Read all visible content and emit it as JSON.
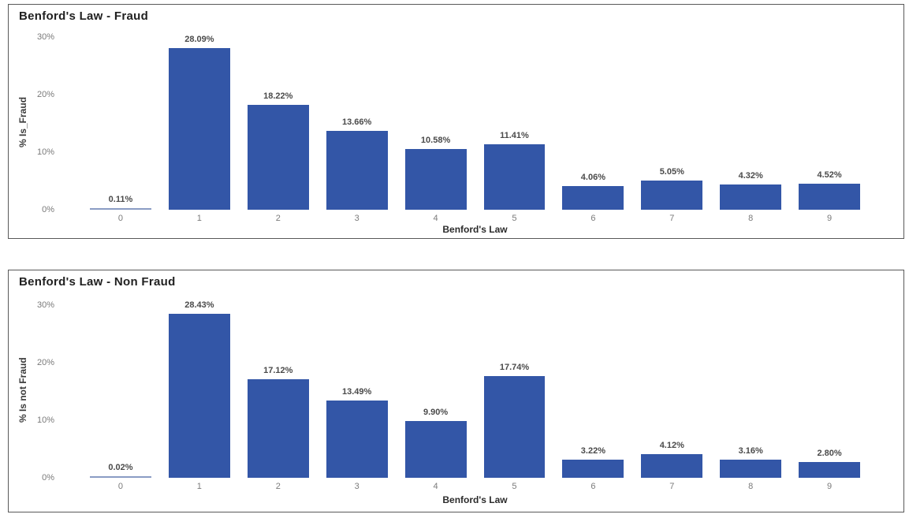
{
  "colors": {
    "bar_fill": "#3356A7",
    "zero_bar_fill": "#8A9CC4",
    "card_border": "#595959",
    "title_text": "#212121",
    "data_label_text": "#4a4a4a",
    "tick_label_text": "#7a7a7a",
    "axis_title_text": "#3a3a3a",
    "background": "#ffffff"
  },
  "chart_data": [
    {
      "type": "bar",
      "title": "Benford's Law - Fraud",
      "xlabel": "Benford's Law",
      "ylabel": "% Is_Fraud",
      "categories": [
        "0",
        "1",
        "2",
        "3",
        "4",
        "5",
        "6",
        "7",
        "8",
        "9"
      ],
      "values": [
        0.11,
        28.09,
        18.22,
        13.66,
        10.58,
        11.41,
        4.06,
        5.05,
        4.32,
        4.52
      ],
      "value_labels": [
        "0.11%",
        "28.09%",
        "18.22%",
        "13.66%",
        "10.58%",
        "11.41%",
        "4.06%",
        "5.05%",
        "4.32%",
        "4.52%"
      ],
      "y_ticks": [
        {
          "value": 0,
          "label": "0%"
        },
        {
          "value": 10,
          "label": "10%"
        },
        {
          "value": 20,
          "label": "20%"
        },
        {
          "value": 30,
          "label": "30%"
        }
      ],
      "ylim": [
        0,
        30
      ],
      "grid": false,
      "legend": "none"
    },
    {
      "type": "bar",
      "title": "Benford's Law - Non Fraud",
      "xlabel": "Benford's Law",
      "ylabel": "% Is not Fraud",
      "categories": [
        "0",
        "1",
        "2",
        "3",
        "4",
        "5",
        "6",
        "7",
        "8",
        "9"
      ],
      "values": [
        0.02,
        28.43,
        17.12,
        13.49,
        9.9,
        17.74,
        3.22,
        4.12,
        3.16,
        2.8
      ],
      "value_labels": [
        "0.02%",
        "28.43%",
        "17.12%",
        "13.49%",
        "9.90%",
        "17.74%",
        "3.22%",
        "4.12%",
        "3.16%",
        "2.80%"
      ],
      "y_ticks": [
        {
          "value": 0,
          "label": "0%"
        },
        {
          "value": 10,
          "label": "10%"
        },
        {
          "value": 20,
          "label": "20%"
        },
        {
          "value": 30,
          "label": "30%"
        }
      ],
      "ylim": [
        0,
        30
      ],
      "grid": false,
      "legend": "none"
    }
  ]
}
